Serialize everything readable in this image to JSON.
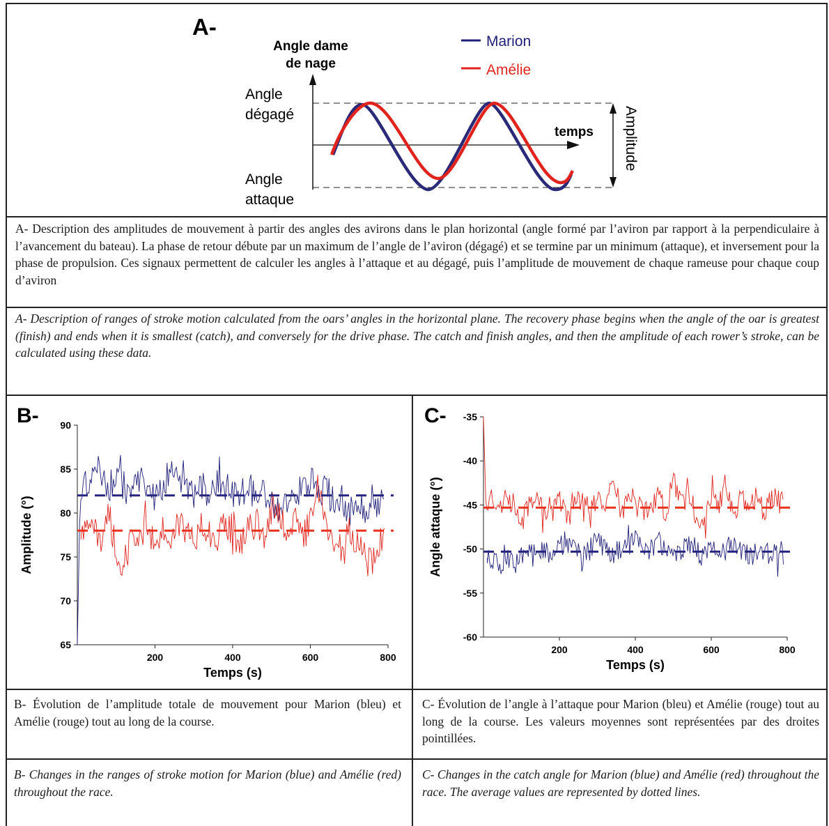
{
  "panelA": {
    "label": "A-",
    "ylabel_line1": "Angle dame",
    "ylabel_line2": "de nage",
    "angle_degage_1": "Angle",
    "angle_degage_2": "dégagé",
    "angle_attaque_1": "Angle",
    "angle_attaque_2": "attaque",
    "xlabel": "temps",
    "amplitude": "Amplitude",
    "legend_marion": "Marion",
    "legend_amelie": "Amélie",
    "caption_fr": "A- Description des amplitudes de mouvement à partir des angles des avirons dans le plan horizontal (angle formé par l’aviron par rapport à la perpendiculaire à l’avancement du bateau). La phase de retour débute par un maximum de l’angle de l’aviron (dégagé) et se termine par un minimum (attaque), et inversement pour la phase de propulsion. Ces signaux permettent de calculer les angles à l’attaque et au dégagé, puis l’amplitude de mouvement de chaque rameuse pour chaque coup d’aviron",
    "caption_en": "A- Description of ranges of stroke motion calculated from the oars’ angles in the horizontal plane. The recovery phase begins when the angle of the oar is greatest (finish) and ends when it is smallest (catch), and conversely for the drive phase. The catch and finish angles, and then the amplitude of each rower’s stroke, can be calculated using these data."
  },
  "panelB": {
    "label": "B-",
    "caption_fr": "B- Évolution de l’amplitude totale de mouvement pour Marion (bleu) et Amélie (rouge) tout au long de la course.",
    "caption_en": "B- Changes in the ranges of stroke motion for Marion (blue) and Amélie (red) throughout the race."
  },
  "panelC": {
    "label": "C-",
    "caption_fr": "C- Évolution de l’angle à l’attaque pour Marion (bleu) et Amélie (rouge) tout au long de la course. Les valeurs moyennes sont représentées par des droites pointillées.",
    "caption_en": "C- Changes in the catch angle for Marion (blue) and Amélie (red) throughout the race. The average values are represented by dotted lines."
  },
  "colors": {
    "marion": "#1e1e78",
    "amelie": "#e0231c",
    "marion_dash": "#262680",
    "amelie_dash": "#e8321e"
  },
  "chart_data": [
    {
      "type": "line",
      "xlabel": "Temps (s)",
      "ylabel": "Amplitude (°)",
      "xlim": [
        0,
        800
      ],
      "ylim": [
        65,
        90
      ],
      "xticks": [
        200,
        400,
        600,
        800
      ],
      "yticks": [
        65,
        70,
        75,
        80,
        85,
        90
      ],
      "grid": false,
      "series": [
        {
          "color": "#1e1e78",
          "mean": 82,
          "x": [
            0,
            3,
            6,
            10,
            20,
            40,
            60,
            80,
            100,
            120,
            140,
            160,
            180,
            200,
            220,
            240,
            260,
            280,
            300,
            320,
            340,
            360,
            380,
            400,
            420,
            440,
            460,
            480,
            500,
            520,
            540,
            560,
            580,
            600,
            620,
            640,
            660,
            680,
            700,
            720,
            740,
            760,
            780,
            790
          ],
          "y": [
            65,
            70,
            78,
            82,
            83,
            84,
            85,
            83,
            84,
            83,
            82,
            84,
            83,
            82,
            83,
            85,
            84,
            83,
            82,
            83,
            82,
            84,
            83,
            82,
            82,
            83,
            82,
            83,
            81,
            80,
            81,
            82,
            83,
            84,
            82,
            83,
            81,
            82,
            80,
            81,
            80,
            82,
            81,
            82
          ]
        },
        {
          "color": "#e0231c",
          "mean": 78,
          "x": [
            10,
            20,
            40,
            60,
            80,
            100,
            120,
            140,
            160,
            180,
            200,
            220,
            240,
            260,
            280,
            300,
            320,
            340,
            360,
            380,
            400,
            420,
            440,
            460,
            480,
            500,
            520,
            540,
            560,
            580,
            600,
            620,
            640,
            660,
            680,
            700,
            720,
            740,
            760,
            780,
            790
          ],
          "y": [
            77,
            78,
            79,
            77,
            80,
            76,
            74,
            78,
            77,
            79,
            76,
            78,
            77,
            79,
            78,
            77,
            79,
            78,
            77,
            79,
            78,
            76,
            78,
            79,
            77,
            81,
            80,
            78,
            79,
            77,
            79,
            83,
            78,
            77,
            76,
            78,
            77,
            75,
            74,
            76,
            78
          ]
        }
      ]
    },
    {
      "type": "line",
      "xlabel": "Temps (s)",
      "ylabel": "Angle attaque (°)",
      "xlim": [
        0,
        800
      ],
      "ylim": [
        -60,
        -35
      ],
      "xticks": [
        200,
        400,
        600,
        800
      ],
      "yticks": [
        -60,
        -55,
        -50,
        -45,
        -40,
        -35
      ],
      "grid": false,
      "series": [
        {
          "color": "#e0231c",
          "mean": -45.3,
          "x": [
            0,
            3,
            6,
            10,
            20,
            40,
            60,
            80,
            100,
            120,
            140,
            160,
            180,
            200,
            220,
            240,
            260,
            280,
            300,
            320,
            340,
            360,
            380,
            400,
            420,
            440,
            460,
            480,
            500,
            520,
            540,
            560,
            580,
            600,
            620,
            640,
            660,
            680,
            700,
            720,
            740,
            760,
            780,
            790
          ],
          "y": [
            -35,
            -40,
            -44,
            -45,
            -44,
            -46,
            -44,
            -45,
            -47,
            -45,
            -44,
            -46,
            -45,
            -44,
            -47,
            -45,
            -44,
            -46,
            -44,
            -45,
            -43,
            -46,
            -45,
            -44,
            -46,
            -45,
            -44,
            -46,
            -42,
            -45,
            -44,
            -46,
            -47,
            -44,
            -45,
            -43,
            -46,
            -44,
            -45,
            -44,
            -46,
            -44,
            -45,
            -44
          ]
        },
        {
          "color": "#1e1e78",
          "mean": -50.3,
          "x": [
            10,
            20,
            40,
            60,
            80,
            100,
            120,
            140,
            160,
            180,
            200,
            220,
            240,
            260,
            280,
            300,
            320,
            340,
            360,
            380,
            400,
            420,
            440,
            460,
            480,
            500,
            520,
            540,
            560,
            580,
            600,
            620,
            640,
            660,
            680,
            700,
            720,
            740,
            760,
            780,
            790
          ],
          "y": [
            -51,
            -51,
            -52,
            -51,
            -52,
            -51,
            -50,
            -51,
            -50,
            -51,
            -50,
            -49,
            -50,
            -51,
            -50,
            -49,
            -50,
            -51,
            -50,
            -50,
            -49,
            -51,
            -50,
            -49,
            -50,
            -51,
            -50,
            -49,
            -50,
            -51,
            -50,
            -51,
            -50,
            -49,
            -50,
            -51,
            -50,
            -50,
            -51,
            -50,
            -51
          ]
        }
      ]
    }
  ]
}
